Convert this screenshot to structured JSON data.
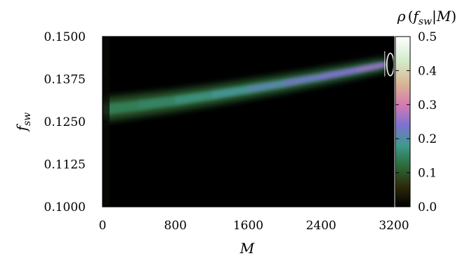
{
  "chart_data": {
    "type": "heatmap",
    "title": "",
    "xlabel": "M",
    "ylabel_base": "f",
    "ylabel_sub": "sw",
    "colorbar_label": {
      "rho": "ρ",
      "open": "(",
      "f": "f",
      "sub": "sw",
      "bar": "|",
      "M": "M",
      "close": ")"
    },
    "xlim": [
      0,
      3200
    ],
    "ylim": [
      0.1,
      0.15
    ],
    "clim": [
      0.0,
      0.5
    ],
    "x_ticks": [
      "0",
      "800",
      "1600",
      "2400",
      "3200"
    ],
    "y_ticks": [
      "0.1000",
      "0.1125",
      "0.1250",
      "0.1375",
      "0.1500"
    ],
    "colorbar_ticks": [
      "0.0",
      "0.1",
      "0.2",
      "0.3",
      "0.4",
      "0.5"
    ],
    "ridge": {
      "M": [
        0,
        400,
        800,
        1200,
        1600,
        2000,
        2400,
        2800,
        3100
      ],
      "f_sw": [
        0.1285,
        0.1298,
        0.1312,
        0.1328,
        0.1345,
        0.1363,
        0.1382,
        0.1402,
        0.1418
      ],
      "peak_density": [
        0.12,
        0.13,
        0.14,
        0.16,
        0.18,
        0.2,
        0.22,
        0.24,
        0.25
      ]
    },
    "colormap": [
      "#000000",
      "#2e2a0c",
      "#2b6b38",
      "#3f9a8c",
      "#7b72d0",
      "#d67ab0",
      "#d9b494",
      "#d3eccb",
      "#ffffff"
    ]
  }
}
